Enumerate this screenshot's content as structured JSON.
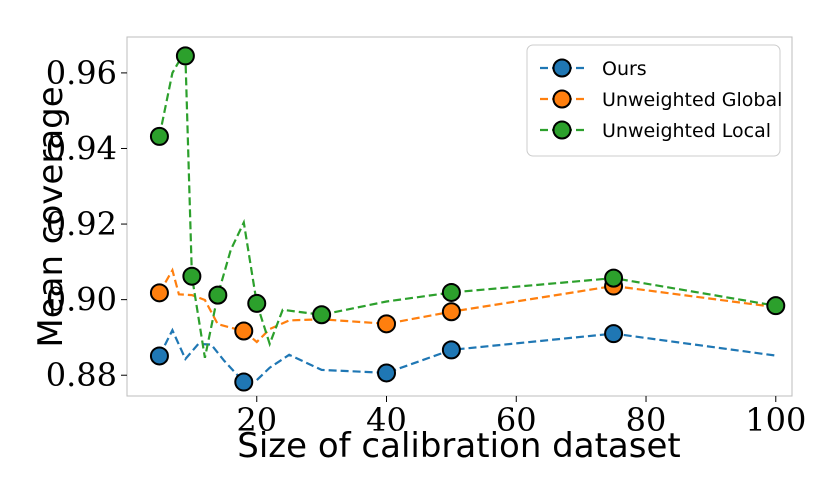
{
  "chart_data": {
    "type": "line",
    "title": "",
    "xlabel": "Size of calibration dataset",
    "ylabel": "Mean coverage",
    "xlim": [
      0,
      102.5
    ],
    "ylim": [
      0.8745,
      0.9695
    ],
    "xticks": [
      20,
      40,
      60,
      80,
      100
    ],
    "yticks": [
      0.88,
      0.9,
      0.92,
      0.94,
      0.96
    ],
    "ytick_labels": [
      "0.88",
      "0.90",
      "0.92",
      "0.94",
      "0.96"
    ],
    "legend_position": "top-right",
    "series": [
      {
        "name": "Ours",
        "color": "#1f77b4",
        "line_x": [
          5,
          7,
          9,
          11,
          13,
          15,
          18,
          20,
          22,
          25,
          30,
          40,
          50,
          75,
          100
        ],
        "line_y": [
          0.8851,
          0.8919,
          0.8843,
          0.8883,
          0.8881,
          0.8838,
          0.8782,
          0.8787,
          0.882,
          0.8854,
          0.8814,
          0.8806,
          0.8867,
          0.891,
          0.8852
        ],
        "marker_x": [
          5,
          18,
          40,
          50,
          75
        ],
        "marker_y": [
          0.8851,
          0.8782,
          0.8806,
          0.8867,
          0.891
        ]
      },
      {
        "name": "Unweighted Global",
        "color": "#ff7f0e",
        "line_x": [
          5,
          7,
          8,
          10,
          12,
          14,
          18,
          20,
          22,
          25,
          30,
          40,
          50,
          75,
          100
        ],
        "line_y": [
          0.9018,
          0.9078,
          0.9014,
          0.9012,
          0.8999,
          0.8935,
          0.8917,
          0.8888,
          0.8922,
          0.8945,
          0.8948,
          0.8936,
          0.8968,
          0.9036,
          0.898
        ],
        "marker_x": [
          5,
          18,
          40,
          50,
          75
        ],
        "marker_y": [
          0.9018,
          0.8917,
          0.8936,
          0.8968,
          0.9036
        ]
      },
      {
        "name": "Unweighted Local",
        "color": "#2ca02c",
        "line_x": [
          5,
          7,
          8,
          9,
          10,
          12,
          14,
          16,
          18,
          20,
          22,
          24,
          30,
          40,
          50,
          75,
          100
        ],
        "line_y": [
          0.9432,
          0.96,
          0.963,
          0.9645,
          0.9062,
          0.8846,
          0.9012,
          0.9132,
          0.9204,
          0.899,
          0.8883,
          0.8973,
          0.896,
          0.8995,
          0.9019,
          0.9057,
          0.8984
        ],
        "marker_x": [
          5,
          9,
          10,
          14,
          20,
          30,
          50,
          75,
          100
        ],
        "marker_y": [
          0.9432,
          0.9645,
          0.9062,
          0.9012,
          0.899,
          0.896,
          0.9019,
          0.9057,
          0.8984
        ]
      }
    ]
  }
}
